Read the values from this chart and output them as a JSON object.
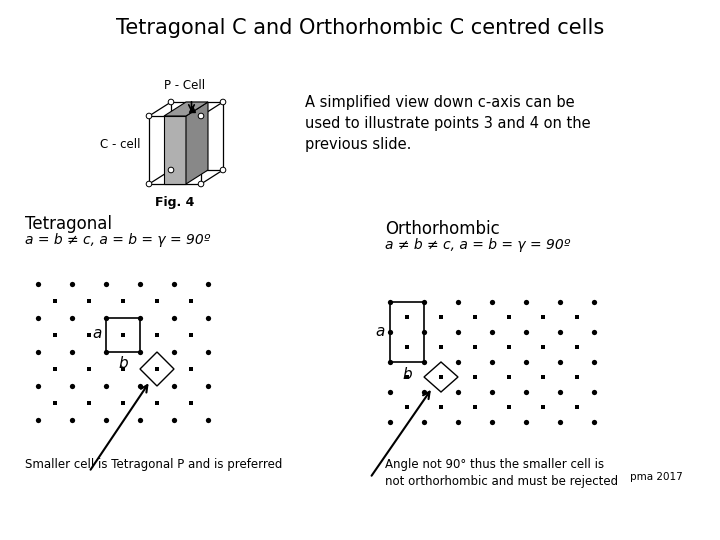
{
  "title": "Tetragonal C and Orthorhombic C centred cells",
  "title_fontsize": 15,
  "bg_color": "#ffffff",
  "text_simplified": "A simplified view down c-axis can be\nused to illustrate points 3 and 4 on the\nprevious slide.",
  "fig4_label": "Fig. 4",
  "pcell_label": "P - Cell",
  "ccell_label": "C - cell",
  "tetragonal_label": "Tetragonal",
  "tetragonal_eq": "a = b ≠ c, a = b = γ = 90º",
  "orthorhombic_label": "Orthorhombic",
  "orthorhombic_eq": "a ≠ b ≠ c, a = b = γ = 90º",
  "smaller_cell_text": "Smaller cell is Tetragonal P and is preferred",
  "angle_text": "Angle not 90° thus the smaller cell is\nnot orthorhombic and must be rejected",
  "pma_text": "pma 2017",
  "dot_color": "#000000"
}
